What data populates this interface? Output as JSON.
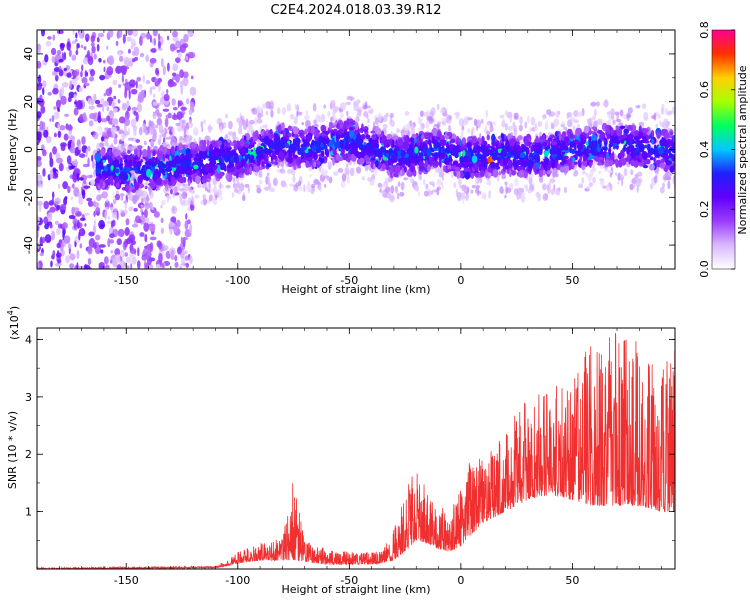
{
  "figure": {
    "title": "C2E4.2024.018.03.39.R12"
  },
  "chart_data": [
    {
      "type": "heatmap",
      "title": "C2E4.2024.018.03.39.R12",
      "xlabel": "Height of straight line (km)",
      "ylabel": "Frequency (Hz)",
      "xlim": [
        -190,
        96
      ],
      "ylim": [
        -50,
        50
      ],
      "x_ticks": [
        -150,
        -100,
        -50,
        0,
        50
      ],
      "x_tick_labels": [
        "-150",
        "-100",
        "-50",
        "0",
        "50"
      ],
      "y_ticks": [
        -40,
        -20,
        0,
        20,
        40
      ],
      "y_tick_labels": [
        "-40",
        "-20",
        "0",
        "20",
        "40"
      ],
      "colorbar": {
        "label": "Normalized spectral amplitude",
        "range": [
          0,
          0.8
        ],
        "ticks": [
          0,
          0.2,
          0.4,
          0.6,
          0.8
        ],
        "tick_labels": [
          "0.0",
          "0.2",
          "0.4",
          "0.6",
          "0.8"
        ],
        "colormap": [
          "#ffffff",
          "#d9b8ff",
          "#9b3cff",
          "#6000ff",
          "#2020ff",
          "#00c8ff",
          "#00ff60",
          "#a8ff00",
          "#ffd000",
          "#ff3000",
          "#ff0090"
        ]
      },
      "ridge": [
        {
          "x": -160,
          "y": -8
        },
        {
          "x": -150,
          "y": -9
        },
        {
          "x": -140,
          "y": -8
        },
        {
          "x": -130,
          "y": -7
        },
        {
          "x": -120,
          "y": -6
        },
        {
          "x": -110,
          "y": -4
        },
        {
          "x": -100,
          "y": -4
        },
        {
          "x": -90,
          "y": 0
        },
        {
          "x": -80,
          "y": 2
        },
        {
          "x": -70,
          "y": 0
        },
        {
          "x": -60,
          "y": 2
        },
        {
          "x": -50,
          "y": 4
        },
        {
          "x": -40,
          "y": 1
        },
        {
          "x": -30,
          "y": -3
        },
        {
          "x": -20,
          "y": -2
        },
        {
          "x": -10,
          "y": 0
        },
        {
          "x": 0,
          "y": -3
        },
        {
          "x": 10,
          "y": -3
        },
        {
          "x": 20,
          "y": -2
        },
        {
          "x": 30,
          "y": -3
        },
        {
          "x": 40,
          "y": -2
        },
        {
          "x": 50,
          "y": 0
        },
        {
          "x": 60,
          "y": 1
        },
        {
          "x": 70,
          "y": 2
        },
        {
          "x": 80,
          "y": 1
        },
        {
          "x": 90,
          "y": 0
        },
        {
          "x": 96,
          "y": -1
        }
      ],
      "noise_region_x": [
        -190,
        -120
      ]
    },
    {
      "type": "line",
      "xlabel": "Height of straight line (km)",
      "ylabel": "SNR (10 * v/v)",
      "y_scale_label": "(x10",
      "y_scale_exponent": "4",
      "xlim": [
        -190,
        96
      ],
      "ylim": [
        0,
        4.2
      ],
      "x_ticks": [
        -150,
        -100,
        -50,
        0,
        50
      ],
      "x_tick_labels": [
        "-150",
        "-100",
        "-50",
        "0",
        "50"
      ],
      "y_ticks": [
        1,
        2,
        3,
        4
      ],
      "y_tick_labels": [
        "1",
        "2",
        "3",
        "4"
      ],
      "color": "#f03030",
      "envelope": {
        "x": [
          -190,
          -110,
          -105,
          -100,
          -90,
          -80,
          -75,
          -70,
          -60,
          -50,
          -40,
          -35,
          -30,
          -25,
          -20,
          -15,
          -10,
          -5,
          0,
          5,
          10,
          20,
          30,
          40,
          50,
          60,
          70,
          80,
          90,
          96
        ],
        "base": [
          0.0,
          0.02,
          0.05,
          0.1,
          0.15,
          0.15,
          0.15,
          0.12,
          0.08,
          0.08,
          0.08,
          0.1,
          0.15,
          0.3,
          0.5,
          0.45,
          0.35,
          0.3,
          0.4,
          0.6,
          0.8,
          1.0,
          1.2,
          1.3,
          1.2,
          1.1,
          1.1,
          1.1,
          1.0,
          1.0
        ],
        "top": [
          0.02,
          0.05,
          0.15,
          0.3,
          0.45,
          0.55,
          1.6,
          0.5,
          0.35,
          0.3,
          0.3,
          0.35,
          0.7,
          1.4,
          1.9,
          1.3,
          1.1,
          1.0,
          1.4,
          2.0,
          1.9,
          2.5,
          3.0,
          3.1,
          3.5,
          4.0,
          4.2,
          4.0,
          3.5,
          4.1
        ]
      }
    }
  ]
}
